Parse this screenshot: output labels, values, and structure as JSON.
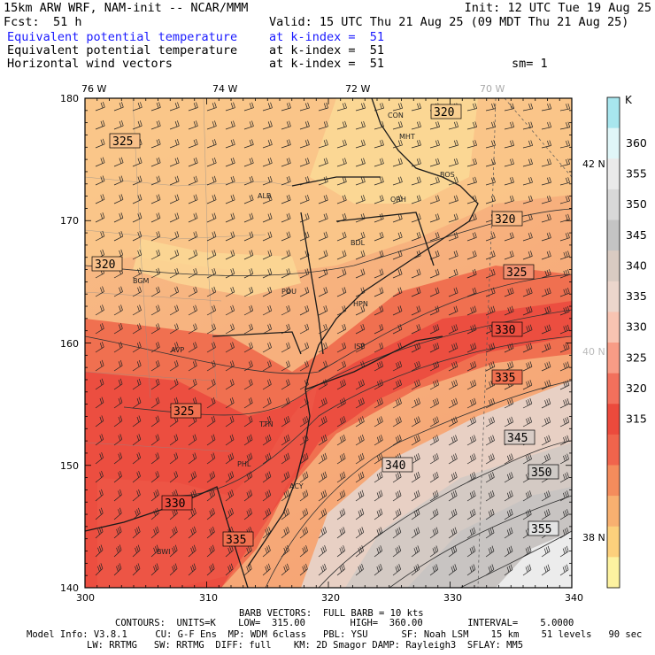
{
  "header": {
    "model": "15km ARW WRF, NAM-init -- NCAR/MMM",
    "init": "Init: 12 UTC Tue 19 Aug 25",
    "fcst_label": "Fcst:",
    "fcst_value": "51 h",
    "valid": "Valid: 15 UTC Thu 21 Aug 25 (09 MDT Thu 21 Aug 25)",
    "field1": "Equivalent potential temperature",
    "field1_level": "at k-index =  51",
    "field2": "Equivalent potential temperature",
    "field2_level": "at k-index =  51",
    "field3": "Horizontal wind vectors",
    "field3_level": "at k-index =  51",
    "smooth": "sm= 1"
  },
  "map": {
    "lon_labels": [
      "76 W",
      "74 W",
      "72 W",
      "70 W"
    ],
    "lat_labels": [
      "42 N",
      "40 N",
      "38 N"
    ],
    "x_ticks": [
      "300",
      "310",
      "320",
      "330",
      "340"
    ],
    "y_ticks": [
      "140",
      "150",
      "160",
      "170",
      "180"
    ],
    "cities": [
      "CON",
      "MHT",
      "BOS",
      "ALB",
      "ORH",
      "BDL",
      "BGM",
      "POU",
      "HPN",
      "AVP",
      "ISP",
      "TTN",
      "PHL",
      "ACY",
      "BWI"
    ],
    "contour_labels": [
      "320",
      "325",
      "320",
      "320",
      "325",
      "330",
      "335",
      "325",
      "340",
      "345",
      "350",
      "330",
      "355",
      "335"
    ]
  },
  "colorbar": {
    "unit": "K",
    "labels": [
      "360",
      "355",
      "350",
      "345",
      "340",
      "335",
      "330",
      "325",
      "320",
      "315"
    ],
    "colors": [
      "#a8e6ee",
      "#e0f6f8",
      "#eaeaea",
      "#d8d8d8",
      "#c4c4c4",
      "#d9cbc2",
      "#ecd6cc",
      "#f8c4b2",
      "#f89c86",
      "#f2705c",
      "#ec4a3c",
      "#f0644c",
      "#f48c5c",
      "#f8b070",
      "#fcd07c",
      "#fdf2a0"
    ]
  },
  "footer": {
    "barb": "BARB VECTORS:  FULL BARB = 10 kts",
    "contours": "CONTOURS:  UNITS=K    LOW=  315.00        HIGH=  360.00        INTERVAL=    5.0000",
    "model_info": "Model Info: V3.8.1     CU: G-F Ens  MP: WDM 6class   PBL: YSU      SF: Noah LSM    15 km    51 levels   90 sec",
    "model_info2": "LW: RRTMG   SW: RRTMG  DIFF: full    KM: 2D Smagor DAMP: Rayleigh3  SFLAY: MM5"
  }
}
